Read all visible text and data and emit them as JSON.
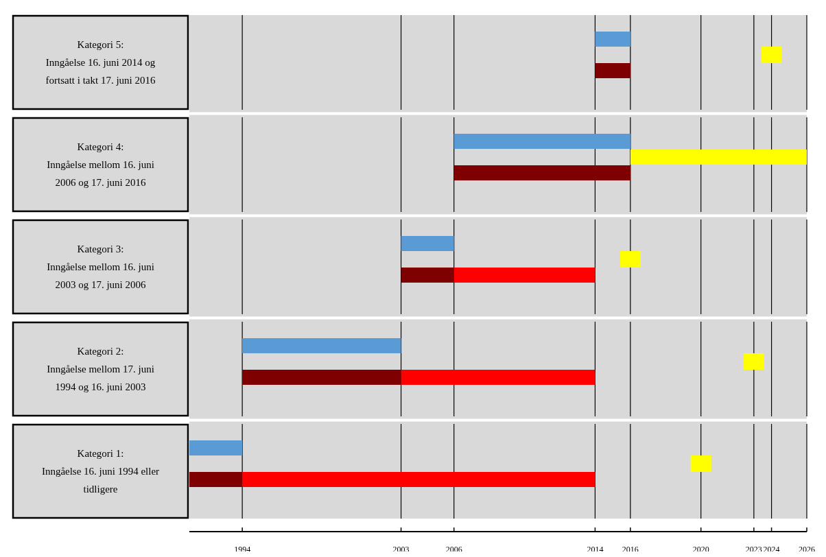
{
  "chart_data": {
    "type": "bar",
    "orientation": "horizontal",
    "categories": [
      "Kategori 5:\nInngåelse 16. juni 2014 og fortsatt i takt 17. juni 2016",
      "Kategori 4:\nInngåelse mellom 16. juni 2006 og 17. juni 2016",
      "Kategori 3:\nInngåelse mellom 16. juni 2003 og 17. juni 2006",
      "Kategori 2:\nInngåelse mellom 17. juni 1994 og 16. juni 2003",
      "Kategori 1:\nInngåelse 16. juni 1994 eller tidligere"
    ],
    "series": [
      {
        "color": "#5b9bd5",
        "base": [
          2014,
          2006,
          2003,
          1994,
          1991
        ],
        "values": [
          2,
          10,
          3,
          9,
          3
        ]
      },
      {
        "color": "#7f0000",
        "base": [
          2014,
          2006,
          2003,
          1994,
          1991
        ],
        "values": [
          2,
          10,
          3,
          9,
          3
        ]
      },
      {
        "color": "#ff0000",
        "base": [
          null,
          null,
          2006,
          2003,
          1994
        ],
        "values": [
          null,
          null,
          8,
          11,
          20
        ]
      },
      {
        "color": "#ffff00",
        "base": [
          null,
          2016,
          null,
          null,
          null
        ],
        "values": [
          null,
          10,
          null,
          null,
          null
        ]
      },
      {
        "type": "scatter",
        "color": "#ffff00",
        "marker": "square",
        "values": [
          2024,
          null,
          2016,
          2023,
          2020
        ]
      }
    ],
    "xlim": [
      1991,
      2026
    ],
    "xticks": [
      1994,
      2003,
      2006,
      2014,
      2016,
      2020,
      2023,
      2024,
      2026
    ],
    "grid": "x",
    "bands": [
      {
        "axis": "x",
        "from": 1991,
        "to": 2026,
        "color": "#d9d9d9"
      }
    ]
  }
}
